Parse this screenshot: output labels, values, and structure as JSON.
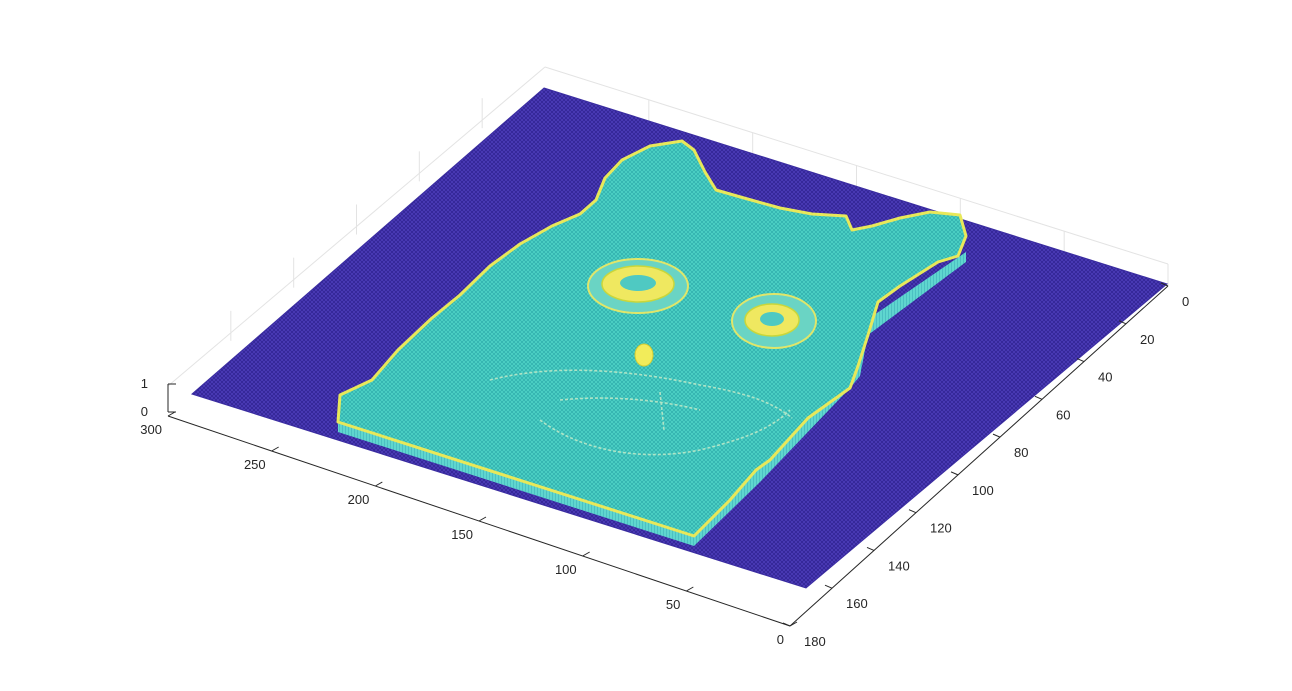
{
  "chart_data": {
    "type": "surface-mesh",
    "title": "",
    "xlabel": "",
    "ylabel": "",
    "zlabel": "",
    "grid": true,
    "colormap": "parula",
    "colors": {
      "low": "#3e26a8",
      "mid": "#35c6c0",
      "high": "#f9fb0e"
    },
    "x_axis": {
      "ticks": [
        0,
        20,
        40,
        60,
        80,
        100,
        120,
        140,
        160,
        180
      ],
      "range": [
        0,
        180
      ]
    },
    "y_axis": {
      "ticks": [
        0,
        50,
        100,
        150,
        200,
        250,
        300
      ],
      "range": [
        0,
        300
      ]
    },
    "z_axis": {
      "ticks": [
        0,
        1
      ],
      "range": [
        0,
        1
      ]
    },
    "surface_regions": [
      {
        "name": "background plane",
        "z": 0
      },
      {
        "name": "cat silhouette plateau",
        "z": 0.5
      },
      {
        "name": "edge ridges",
        "z": 1
      }
    ]
  }
}
